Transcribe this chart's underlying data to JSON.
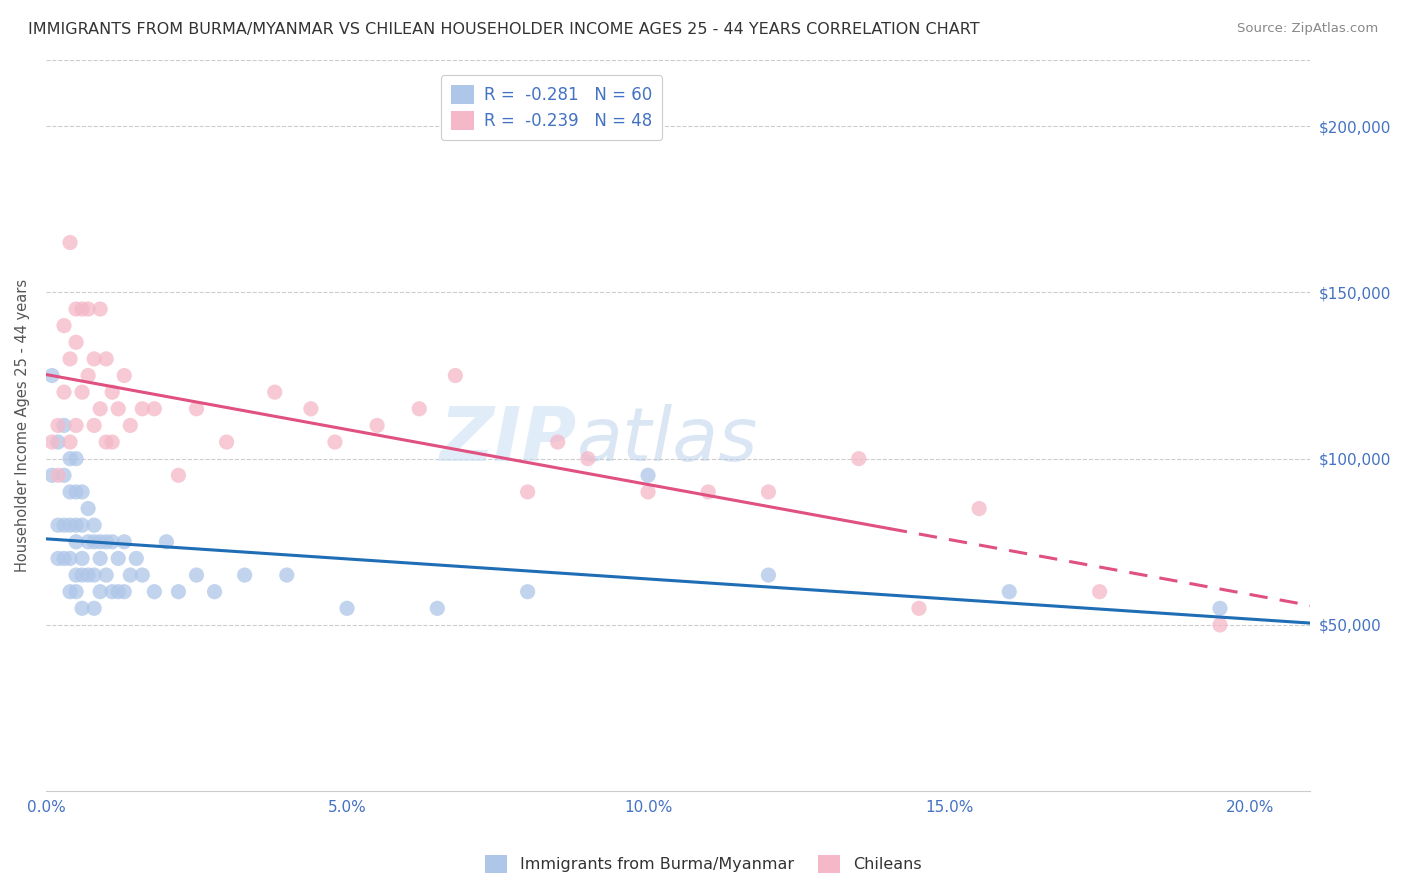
{
  "title": "IMMIGRANTS FROM BURMA/MYANMAR VS CHILEAN HOUSEHOLDER INCOME AGES 25 - 44 YEARS CORRELATION CHART",
  "source": "Source: ZipAtlas.com",
  "ylabel": "Householder Income Ages 25 - 44 years",
  "xlabel_ticks": [
    "0.0%",
    "5.0%",
    "10.0%",
    "15.0%",
    "20.0%"
  ],
  "xlabel_vals": [
    0.0,
    0.05,
    0.1,
    0.15,
    0.2
  ],
  "ytick_labels": [
    "$50,000",
    "$100,000",
    "$150,000",
    "$200,000"
  ],
  "ytick_vals": [
    50000,
    100000,
    150000,
    200000
  ],
  "ylim": [
    0,
    220000
  ],
  "xlim": [
    0.0,
    0.21
  ],
  "color_blue": "#aec6e8",
  "color_pink": "#f4b8c8",
  "trendline_blue": "#1f6db5",
  "trendline_pink": "#e05080",
  "watermark_zip": "ZIP",
  "watermark_atlas": "atlas",
  "burma_x": [
    0.001,
    0.001,
    0.002,
    0.002,
    0.002,
    0.003,
    0.003,
    0.003,
    0.003,
    0.004,
    0.004,
    0.004,
    0.004,
    0.004,
    0.005,
    0.005,
    0.005,
    0.005,
    0.005,
    0.005,
    0.006,
    0.006,
    0.006,
    0.006,
    0.006,
    0.007,
    0.007,
    0.007,
    0.008,
    0.008,
    0.008,
    0.008,
    0.009,
    0.009,
    0.009,
    0.01,
    0.01,
    0.011,
    0.011,
    0.012,
    0.012,
    0.013,
    0.013,
    0.014,
    0.015,
    0.016,
    0.018,
    0.02,
    0.022,
    0.025,
    0.028,
    0.033,
    0.04,
    0.05,
    0.065,
    0.08,
    0.1,
    0.12,
    0.16,
    0.195
  ],
  "burma_y": [
    125000,
    95000,
    105000,
    80000,
    70000,
    110000,
    95000,
    80000,
    70000,
    100000,
    90000,
    80000,
    70000,
    60000,
    100000,
    90000,
    80000,
    75000,
    65000,
    60000,
    90000,
    80000,
    70000,
    65000,
    55000,
    85000,
    75000,
    65000,
    80000,
    75000,
    65000,
    55000,
    75000,
    70000,
    60000,
    75000,
    65000,
    75000,
    60000,
    70000,
    60000,
    75000,
    60000,
    65000,
    70000,
    65000,
    60000,
    75000,
    60000,
    65000,
    60000,
    65000,
    65000,
    55000,
    55000,
    60000,
    95000,
    65000,
    60000,
    55000
  ],
  "chilean_x": [
    0.001,
    0.002,
    0.002,
    0.003,
    0.003,
    0.004,
    0.004,
    0.004,
    0.005,
    0.005,
    0.005,
    0.006,
    0.006,
    0.007,
    0.007,
    0.008,
    0.008,
    0.009,
    0.009,
    0.01,
    0.01,
    0.011,
    0.011,
    0.012,
    0.013,
    0.014,
    0.016,
    0.018,
    0.022,
    0.025,
    0.03,
    0.038,
    0.044,
    0.048,
    0.055,
    0.062,
    0.068,
    0.08,
    0.085,
    0.09,
    0.1,
    0.11,
    0.12,
    0.135,
    0.145,
    0.155,
    0.175,
    0.195
  ],
  "chilean_y": [
    105000,
    110000,
    95000,
    140000,
    120000,
    105000,
    130000,
    165000,
    145000,
    135000,
    110000,
    145000,
    120000,
    145000,
    125000,
    130000,
    110000,
    145000,
    115000,
    130000,
    105000,
    120000,
    105000,
    115000,
    125000,
    110000,
    115000,
    115000,
    95000,
    115000,
    105000,
    120000,
    115000,
    105000,
    110000,
    115000,
    125000,
    90000,
    105000,
    100000,
    90000,
    90000,
    90000,
    100000,
    55000,
    85000,
    60000,
    50000
  ],
  "legend_r1": "R = ",
  "legend_v1": "-0.281",
  "legend_n1": "  N = ",
  "legend_nv1": "60",
  "legend_r2": "R = ",
  "legend_v2": "-0.239",
  "legend_n2": "  N = ",
  "legend_nv2": "48"
}
